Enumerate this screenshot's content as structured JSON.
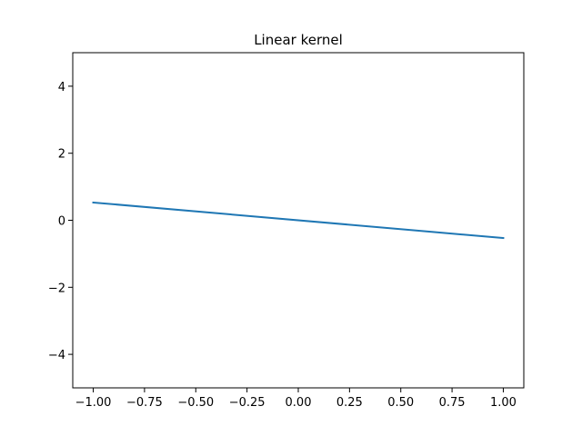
{
  "chart_data": {
    "type": "line",
    "title": "Linear kernel",
    "xlabel": "",
    "ylabel": "",
    "xlim": [
      -1.1,
      1.1
    ],
    "ylim": [
      -5,
      5
    ],
    "x_ticks": [
      -1.0,
      -0.75,
      -0.5,
      -0.25,
      0.0,
      0.25,
      0.5,
      0.75,
      1.0
    ],
    "x_tick_labels": [
      "−1.00",
      "−0.75",
      "−0.50",
      "−0.25",
      "0.00",
      "0.25",
      "0.50",
      "0.75",
      "1.00"
    ],
    "y_ticks": [
      -4,
      -2,
      0,
      2,
      4
    ],
    "y_tick_labels": [
      "−4",
      "−2",
      "0",
      "2",
      "4"
    ],
    "grid": false,
    "series": [
      {
        "color": "#1f77b4",
        "x": [
          -1.0,
          1.0
        ],
        "y": [
          0.53,
          -0.53
        ]
      }
    ]
  }
}
